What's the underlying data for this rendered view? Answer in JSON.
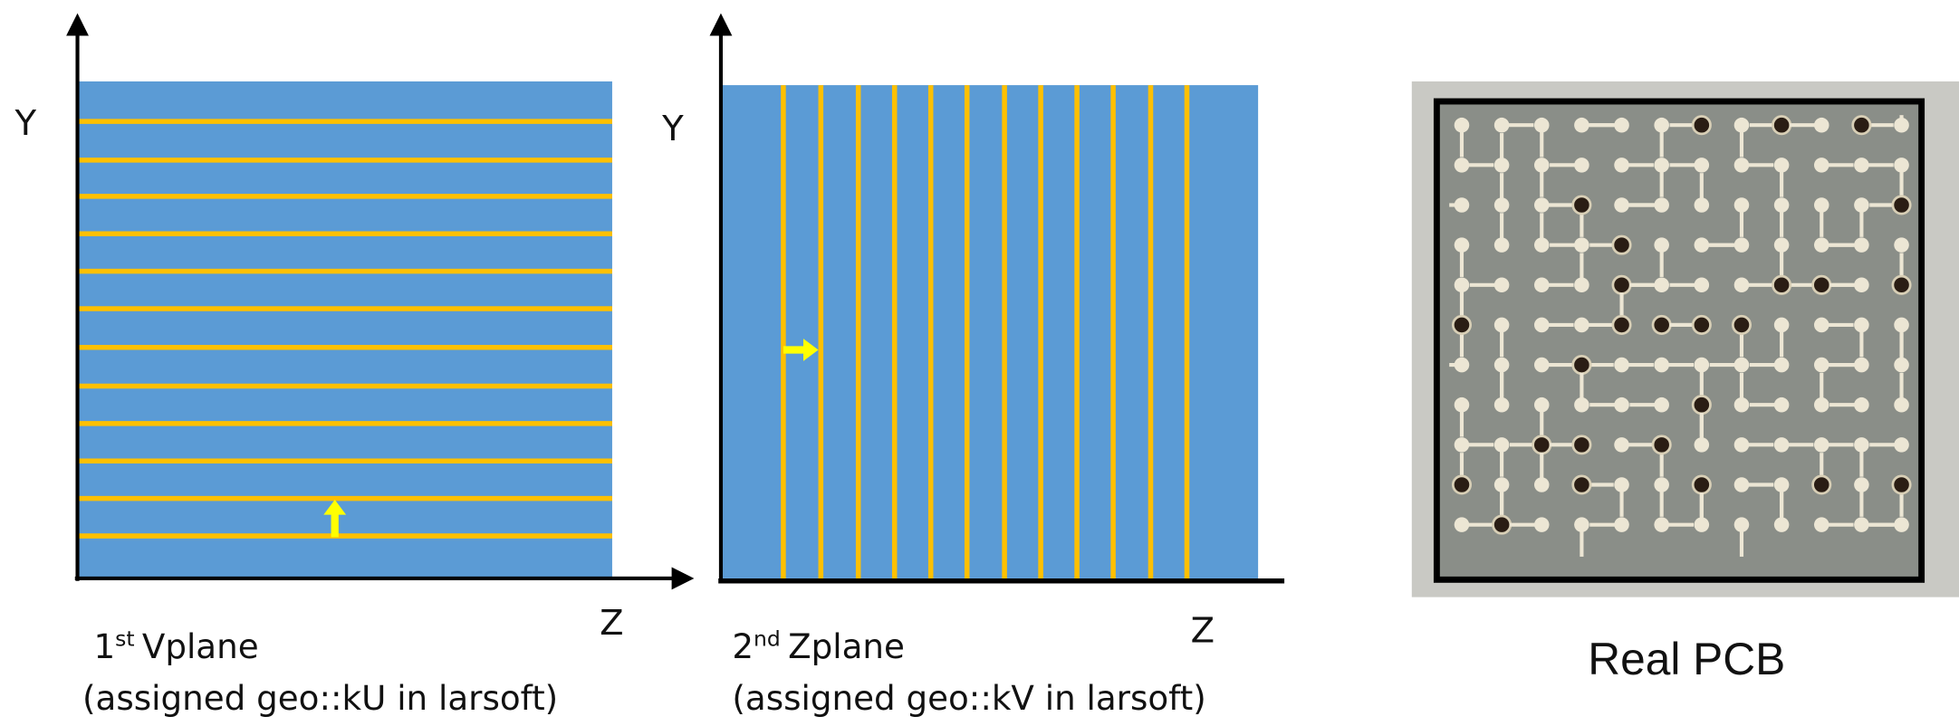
{
  "panels": [
    {
      "y_label": "Y",
      "z_label": "Z",
      "title": {
        "number": "1",
        "suffix": "st",
        "name": "Vplane"
      },
      "subtitle": "(assigned geo::kU in larsoft)"
    },
    {
      "y_label": "Y",
      "z_label": "Z",
      "title": {
        "number": "2",
        "suffix": "nd",
        "name": "Zplane"
      },
      "subtitle": "(assigned geo::kV in larsoft)"
    }
  ],
  "pcb_caption": "Real PCB"
}
